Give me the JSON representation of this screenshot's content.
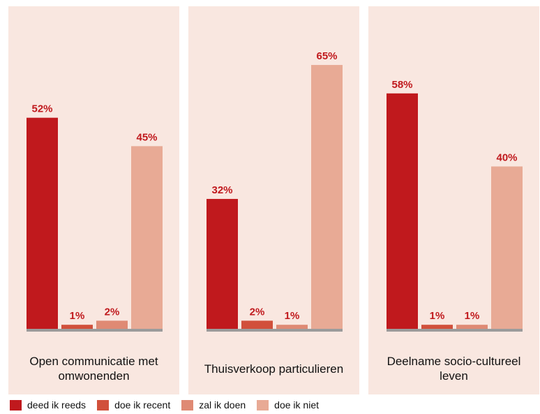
{
  "chart_data": {
    "type": "bar",
    "series": [
      {
        "name": "deed ik reeds",
        "color": "#c0191d"
      },
      {
        "name": "doe ik recent",
        "color": "#d1503b"
      },
      {
        "name": "zal ik doen",
        "color": "#df8a74"
      },
      {
        "name": "doe ik niet",
        "color": "#e8aa95"
      }
    ],
    "ylim": [
      0,
      70
    ],
    "panels": [
      {
        "title": "Open communicatie met omwonenden",
        "values": [
          52,
          1,
          2,
          45
        ],
        "labels": [
          "52%",
          "1%",
          "2%",
          "45%"
        ]
      },
      {
        "title": "Thuisverkoop particulieren",
        "values": [
          32,
          2,
          1,
          65
        ],
        "labels": [
          "32%",
          "2%",
          "1%",
          "65%"
        ]
      },
      {
        "title": "Deelname socio-cultureel leven",
        "values": [
          58,
          1,
          1,
          40
        ],
        "labels": [
          "58%",
          "1%",
          "1%",
          "40%"
        ]
      }
    ],
    "legend_position": "bottom-left"
  },
  "colors": {
    "panel_background": "#f9e7e0",
    "label": "#c0191d",
    "baseline": "#9b9b9b"
  }
}
